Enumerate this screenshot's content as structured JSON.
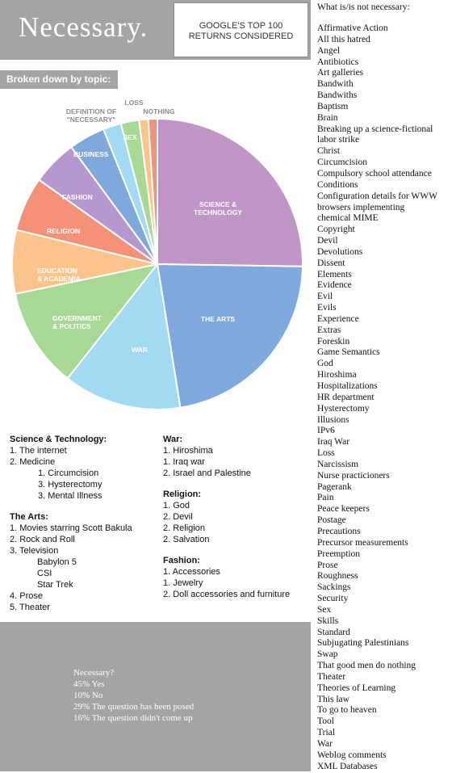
{
  "header": {
    "title": "Necessary.",
    "subtitle_line1": "GOOGLE'S TOP 100",
    "subtitle_line2": "RETURNS CONSIDERED"
  },
  "topic_label": "Broken down by topic:",
  "chart_data": {
    "type": "pie",
    "slices": [
      {
        "label": "SCIENCE & TECHNOLOGY",
        "value": 25,
        "color": "#bf96c6"
      },
      {
        "label": "THE ARTS",
        "value": 22,
        "color": "#7fa9dc"
      },
      {
        "label": "WAR",
        "value": 13,
        "color": "#a2daf2"
      },
      {
        "label": "GOVERNMENT & POLITICS",
        "value": 11,
        "color": "#a8d896"
      },
      {
        "label": "EDUCATION & ACADEMIA",
        "value": 7,
        "color": "#fcc38a"
      },
      {
        "label": "RELIGION",
        "value": 6,
        "color": "#f49178"
      },
      {
        "label": "FASHION",
        "value": 5,
        "color": "#b697ce"
      },
      {
        "label": "BUSINESS",
        "value": 4,
        "color": "#7fa9dc"
      },
      {
        "label": "DEFINITION OF \"NECESSARY\"",
        "value": 2,
        "color": "#a2daf2"
      },
      {
        "label": "SEX",
        "value": 2,
        "color": "#a8d896"
      },
      {
        "label": "LOSS",
        "value": 1,
        "color": "#fcc38a"
      },
      {
        "label": "NOTHING",
        "value": 1,
        "color": "#f49178"
      }
    ]
  },
  "right_list": {
    "heading": "What is/is not necessary:",
    "items": [
      "Affirmative Action",
      "All this hatred",
      "Angel",
      "Antibiotics",
      "Art galleries",
      "Bandwith",
      "Bandwiths",
      "Baptism",
      "Brain",
      "Breaking up a science-fictional",
      "labor strike",
      "Christ",
      "Circumcision",
      "Compulsory school attendance",
      "Conditions",
      "Configuration details for WWW",
      "browsers implementing",
      "chemical MIME",
      "Copyright",
      "Devil",
      "Devolutions",
      "Dissent",
      "Elements",
      "Evidence",
      "Evil",
      "Evils",
      "Experience",
      "Extras",
      "Foreskin",
      "Game Semantics",
      "God",
      "Hiroshima",
      "Hospitalizations",
      "HR department",
      "Hysterectomy",
      "Illusions",
      "IPv6",
      "Iraq War",
      "Loss",
      "Narcissism",
      "Nurse practicioners",
      "Pagerank",
      "Pain",
      "Peace keepers",
      "Postage",
      "Precautions",
      "Precursor measurements",
      "Preemption",
      "Prose",
      "Roughness",
      "Sackings",
      "Security",
      "Sex",
      "Skills",
      "Standard",
      "Subjugating Palestinians",
      "Swap",
      "That good men do nothing",
      "Theater",
      "Theories of Learning",
      "This law",
      "To go to heaven",
      "Tool",
      "Trial",
      "War",
      "Weblog comments",
      "XML Databases"
    ]
  },
  "topics_left": [
    {
      "cls": "h",
      "text": "Science & Technology:"
    },
    {
      "cls": "",
      "text": "1. The internet"
    },
    {
      "cls": "",
      "text": "2. Medicine"
    },
    {
      "cls": "sub1",
      "text": "1. Circumcision"
    },
    {
      "cls": "sub1",
      "text": "3. Hysterectomy"
    },
    {
      "cls": "sub1",
      "text": "3. Mental Illness"
    },
    {
      "cls": "gap",
      "text": ""
    },
    {
      "cls": "h",
      "text": "The Arts:"
    },
    {
      "cls": "",
      "text": "1. Movies starring Scott Bakula"
    },
    {
      "cls": "",
      "text": "2. Rock and Roll"
    },
    {
      "cls": "",
      "text": "3. Television"
    },
    {
      "cls": "sub2",
      "text": "Babylon 5"
    },
    {
      "cls": "sub2",
      "text": "CSI"
    },
    {
      "cls": "sub2",
      "text": "Star Trek"
    },
    {
      "cls": "",
      "text": "4. Prose"
    },
    {
      "cls": "",
      "text": "5. Theater"
    }
  ],
  "topics_right": [
    {
      "cls": "h",
      "text": "War:"
    },
    {
      "cls": "",
      "text": "1. Hiroshima"
    },
    {
      "cls": "",
      "text": "1. Iraq war"
    },
    {
      "cls": "",
      "text": "2. Israel and Palestine"
    },
    {
      "cls": "gap",
      "text": ""
    },
    {
      "cls": "h",
      "text": "Religion:"
    },
    {
      "cls": "",
      "text": "1. God"
    },
    {
      "cls": "",
      "text": "2. Devil"
    },
    {
      "cls": "",
      "text": "2. Religion"
    },
    {
      "cls": "",
      "text": "2. Salvation"
    },
    {
      "cls": "gap",
      "text": ""
    },
    {
      "cls": "h",
      "text": "Fashion:"
    },
    {
      "cls": "",
      "text": "1. Accessories"
    },
    {
      "cls": "",
      "text": "1. Jewelry"
    },
    {
      "cls": "",
      "text": "2. Doll accessories and furniture"
    }
  ],
  "necessary": {
    "heading": "Necessary?",
    "lines": [
      "45% Yes",
      "10% No",
      "29% The question has been posed",
      "16% The question didn't come up"
    ]
  }
}
